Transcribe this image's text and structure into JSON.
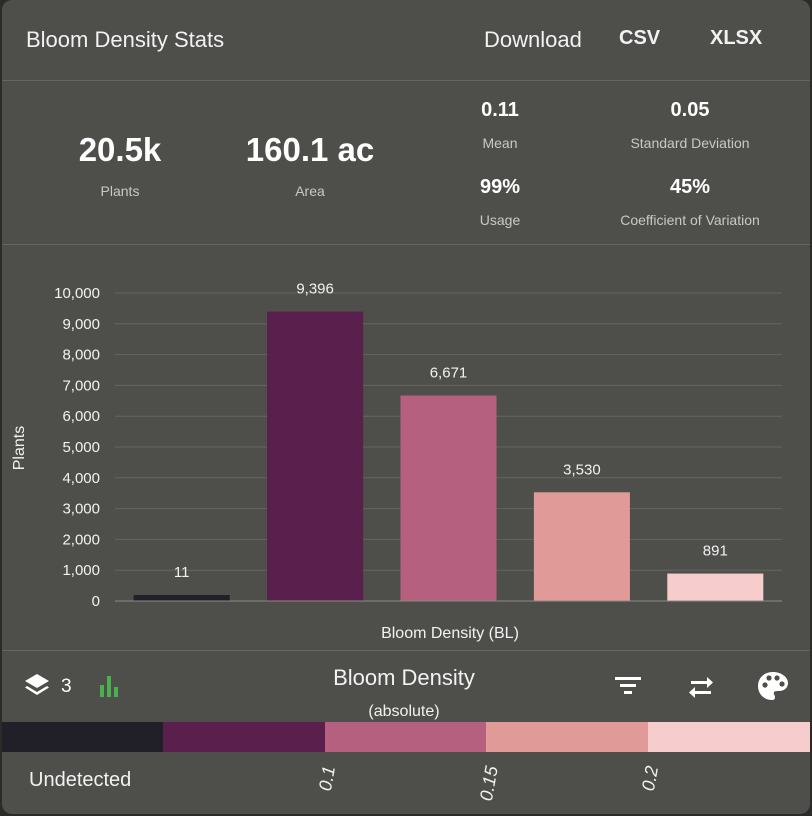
{
  "header": {
    "title": "Bloom Density Stats",
    "download_label": "Download",
    "csv_label": "CSV",
    "xlsx_label": "XLSX"
  },
  "stats": {
    "plants_value": "20.5k",
    "plants_label": "Plants",
    "area_value": "160.1 ac",
    "area_label": "Area",
    "mean_value": "0.11",
    "mean_label": "Mean",
    "std_value": "0.05",
    "std_label": "Standard Deviation",
    "usage_value": "99%",
    "usage_label": "Usage",
    "cv_value": "45%",
    "cv_label": "Coefficient of Variation"
  },
  "chart_data": {
    "type": "bar",
    "xlabel": "Bloom Density (BL)",
    "ylabel": "Plants",
    "ylim": [
      0,
      10000
    ],
    "yticks": [
      "0",
      "1,000",
      "2,000",
      "3,000",
      "4,000",
      "5,000",
      "6,000",
      "7,000",
      "8,000",
      "9,000",
      "10,000"
    ],
    "values": [
      11,
      9396,
      6671,
      3530,
      891
    ],
    "value_labels": [
      "11",
      "9,396",
      "6,671",
      "3,530",
      "891"
    ],
    "colors": [
      "#211f27",
      "#5a1f4d",
      "#b5607f",
      "#e09a97",
      "#f6cccc"
    ],
    "grid": true
  },
  "legend": {
    "layer_count": "3",
    "title": "Bloom Density",
    "subtitle": "(absolute)",
    "undetected_label": "Undetected",
    "ticks": [
      "0.1",
      "0.15",
      "0.2"
    ],
    "colors": [
      "#211f27",
      "#5a1f4d",
      "#b5607f",
      "#e09a97",
      "#f6cccc"
    ],
    "icons": [
      "layers-icon",
      "histogram-icon",
      "filter-icon",
      "swap-icon",
      "palette-icon"
    ]
  }
}
